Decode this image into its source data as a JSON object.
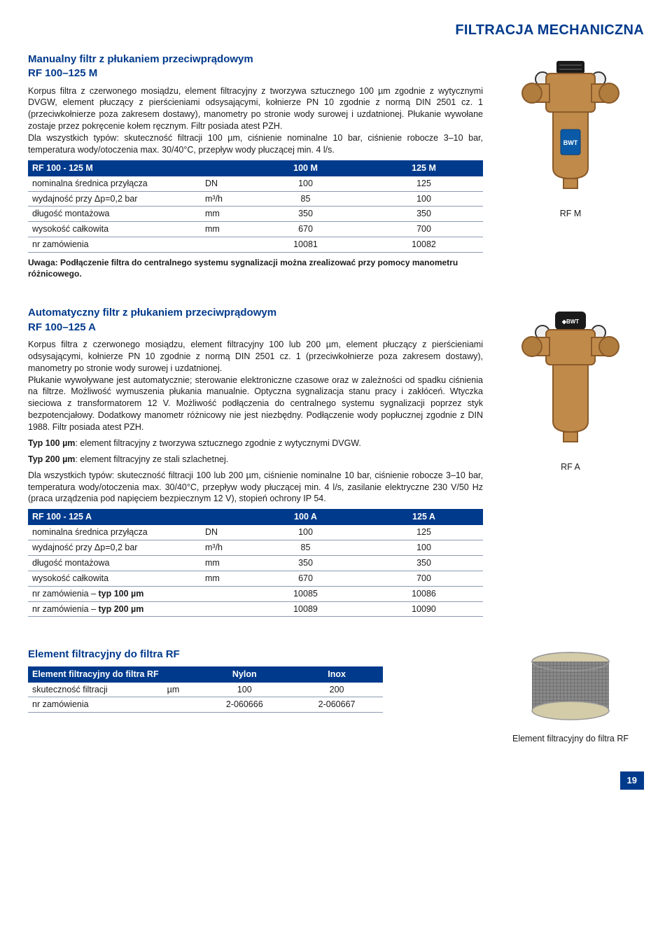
{
  "header": {
    "title": "FILTRACJA MECHANICZNA"
  },
  "colors": {
    "brand": "#003a8c",
    "table_border": "#8a9ab0",
    "brass": "#c08a4a",
    "brass_dark": "#8a5a2a",
    "black": "#1a1a1a",
    "grey": "#888888"
  },
  "section1": {
    "title": "Manualny filtr z płukaniem przeciwprądowym",
    "code": "RF 100–125 M",
    "body": "Korpus filtra z czerwonego mosiądzu, element filtracyjny z tworzywa sztucznego 100 µm zgodnie z wytycznymi DVGW, element płuczący z pierścieniami odsysającymi, kołnierze PN 10 zgodnie z normą DIN 2501 cz. 1 (przeciwkołnierze poza zakresem dostawy), manometry po stronie wody surowej i uzdatnionej. Płukanie wywołane zostaje przez pokręcenie kołem ręcznym. Filtr posiada atest PZH.\nDla wszystkich typów: skuteczność filtracji 100 µm, ciśnienie nominalne 10 bar, ciśnienie robocze 3–10 bar, temperatura wody/otoczenia max. 30/40°C, przepływ wody płuczącej min. 4 l/s.",
    "table": {
      "header": [
        "RF 100 - 125 M",
        "",
        "100 M",
        "125 M"
      ],
      "rows": [
        [
          "nominalna średnica przyłącza",
          "DN",
          "100",
          "125"
        ],
        [
          "wydajność przy Δp=0,2 bar",
          "m³/h",
          "85",
          "100"
        ],
        [
          "długość montażowa",
          "mm",
          "350",
          "350"
        ],
        [
          "wysokość całkowita",
          "mm",
          "670",
          "700"
        ],
        [
          "nr zamówienia",
          "",
          "10081",
          "10082"
        ]
      ]
    },
    "note": "Uwaga: Podłączenie filtra do centralnego systemu sygnalizacji można zrealizować przy pomocy manometru różnicowego.",
    "caption": "RF M"
  },
  "section2": {
    "title": "Automatyczny filtr z płukaniem przeciwprądowym",
    "code": "RF 100–125 A",
    "p1": "Korpus filtra z czerwonego mosiądzu, element filtracyjny 100 lub 200 µm, element płuczący z pierścieniami odsysającymi, kołnierze PN 10 zgodnie z normą DIN 2501 cz. 1 (przeciwkołnierze poza zakresem dostawy), manometry po stronie wody surowej i uzdatnionej.\nPłukanie wywoływane jest automatycznie; sterowanie elektroniczne czasowe oraz w zależności od spadku ciśnienia na filtrze. Możliwość wymuszenia płukania manualnie. Optyczna sygnalizacja stanu pracy i zakłóceń. Wtyczka sieciowa z transformatorem 12 V. Możliwość podłączenia do centralnego systemu sygnalizacji poprzez styk bezpotencjałowy. Dodatkowy manometr różnicowy nie jest niezbędny. Podłączenie wody popłucznej zgodnie z DIN 1988. Filtr posiada atest PZH.",
    "p2_bold": "Typ 100 µm",
    "p2_rest": ": element filtracyjny z tworzywa sztucznego zgodnie z wytycznymi DVGW.",
    "p3_bold": "Typ 200 µm",
    "p3_rest": ": element filtracyjny ze stali szlachetnej.",
    "p4": "Dla wszystkich typów: skuteczność filtracji 100 lub 200 µm, ciśnienie nominalne 10 bar, ciśnienie robocze 3–10 bar, temperatura wody/otoczenia max. 30/40°C, przepływ wody płuczącej min. 4 l/s, zasilanie elektryczne 230 V/50 Hz (praca urządzenia pod napięciem bezpiecznym 12 V), stopień ochrony IP 54.",
    "table": {
      "header": [
        "RF 100 - 125 A",
        "",
        "100 A",
        "125 A"
      ],
      "rows": [
        [
          "nominalna średnica przyłącza",
          "DN",
          "100",
          "125"
        ],
        [
          "wydajność przy Δp=0,2 bar",
          "m³/h",
          "85",
          "100"
        ],
        [
          "długość montażowa",
          "mm",
          "350",
          "350"
        ],
        [
          "wysokość całkowita",
          "mm",
          "670",
          "700"
        ]
      ],
      "bold_rows": [
        [
          "nr zamówienia – ",
          "typ 100 µm",
          "",
          "10085",
          "10086"
        ],
        [
          "nr zamówienia – ",
          "typ 200 µm",
          "",
          "10089",
          "10090"
        ]
      ]
    },
    "caption": "RF A"
  },
  "section3": {
    "title": "Element filtracyjny do filtra RF",
    "table": {
      "header": [
        "Element filtracyjny do filtra RF",
        "",
        "Nylon",
        "Inox"
      ],
      "rows": [
        [
          "skuteczność filtracji",
          "µm",
          "100",
          "200"
        ],
        [
          "nr zamówienia",
          "",
          "2-060666",
          "2-060667"
        ]
      ]
    },
    "caption": "Element filtracyjny do filtra RF"
  },
  "page_number": "19"
}
